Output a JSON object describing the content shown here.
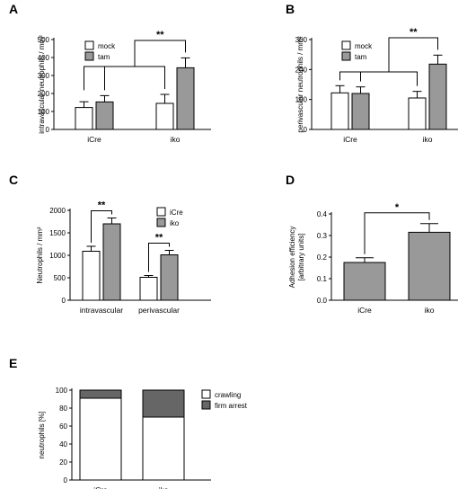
{
  "chart_data": [
    {
      "panel": "A",
      "type": "bar",
      "ylabel": "intravascular neutrophils / mm²",
      "ylim": [
        0,
        500
      ],
      "yticks": [
        0,
        100,
        200,
        300,
        400,
        500
      ],
      "categories": [
        "iCre",
        "iko"
      ],
      "series": [
        {
          "name": "mock",
          "color": "#ffffff",
          "values": [
            122,
            145
          ],
          "errors": [
            32,
            50
          ]
        },
        {
          "name": "tam",
          "color": "#999999",
          "values": [
            153,
            343
          ],
          "errors": [
            35,
            55
          ]
        }
      ],
      "legend": "top-left",
      "significance": [
        {
          "label": "**"
        }
      ]
    },
    {
      "panel": "B",
      "type": "bar",
      "ylabel": "perivascular neutrophils / mm²",
      "ylim": [
        0,
        300
      ],
      "yticks": [
        0,
        100,
        200,
        300
      ],
      "categories": [
        "iCre",
        "iko"
      ],
      "series": [
        {
          "name": "mock",
          "color": "#ffffff",
          "values": [
            122,
            105
          ],
          "errors": [
            24,
            22
          ]
        },
        {
          "name": "tam",
          "color": "#999999",
          "values": [
            120,
            218
          ],
          "errors": [
            22,
            30
          ]
        }
      ],
      "legend": "top-left",
      "significance": [
        {
          "label": "**"
        }
      ]
    },
    {
      "panel": "C",
      "type": "bar",
      "ylabel": "Neutrophils / mm²",
      "ylim": [
        0,
        2000
      ],
      "yticks": [
        0,
        500,
        1000,
        1500,
        2000
      ],
      "categories": [
        "intravascular",
        "perivascular"
      ],
      "series": [
        {
          "name": "iCre",
          "color": "#ffffff",
          "values": [
            1090,
            510
          ],
          "errors": [
            110,
            40
          ]
        },
        {
          "name": "iko",
          "color": "#999999",
          "values": [
            1700,
            1010
          ],
          "errors": [
            130,
            100
          ]
        }
      ],
      "legend": "top-right",
      "significance": [
        {
          "label": "**"
        },
        {
          "label": "**"
        }
      ]
    },
    {
      "panel": "D",
      "type": "bar",
      "ylabel": "Adhesion efficiency [arbitrary units]",
      "ylim": [
        0,
        0.4
      ],
      "yticks": [
        0.0,
        0.1,
        0.2,
        0.3,
        0.4
      ],
      "categories": [
        "iCre",
        "iko"
      ],
      "values": [
        0.175,
        0.315
      ],
      "errors": [
        0.022,
        0.04
      ],
      "color": "#999999",
      "significance": [
        {
          "label": "*"
        }
      ]
    },
    {
      "panel": "E",
      "type": "bar",
      "stacked": true,
      "ylabel": "neutrophils [%]",
      "ylim": [
        0,
        100
      ],
      "yticks": [
        0,
        20,
        40,
        60,
        80,
        100
      ],
      "categories": [
        "iCre",
        "iko"
      ],
      "series": [
        {
          "name": "crawling",
          "color": "#ffffff",
          "values": [
            91,
            70
          ]
        },
        {
          "name": "firm arrest",
          "color": "#666666",
          "values": [
            9,
            30
          ]
        }
      ],
      "legend": "top-right"
    }
  ]
}
